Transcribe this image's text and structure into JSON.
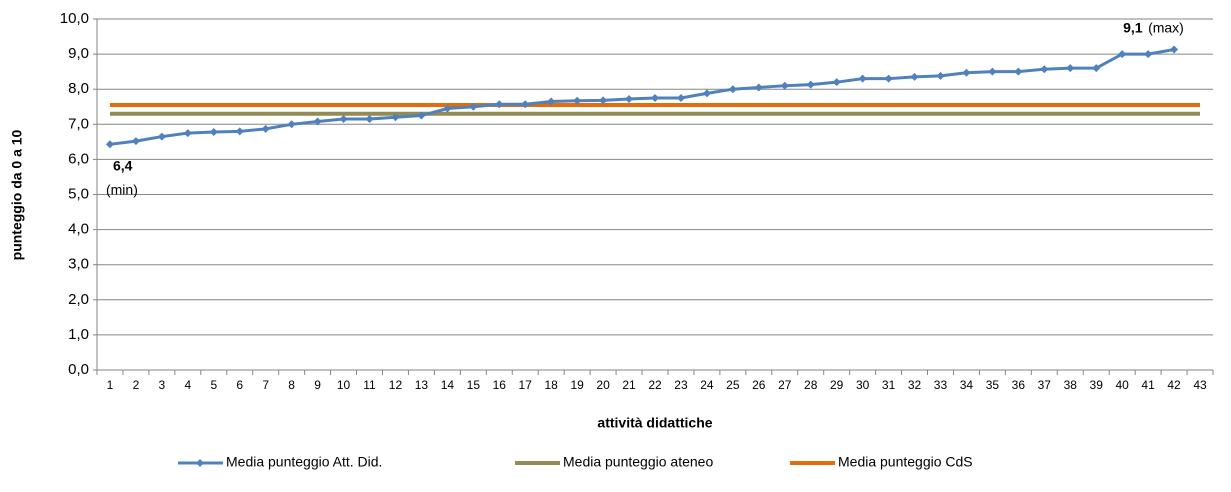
{
  "chart_data": {
    "type": "line",
    "y_label": "punteggio da 0 a 10",
    "x_label": "attività didattiche",
    "categories": [
      "1",
      "2",
      "3",
      "4",
      "5",
      "6",
      "7",
      "8",
      "9",
      "10",
      "11",
      "12",
      "13",
      "14",
      "15",
      "16",
      "17",
      "18",
      "19",
      "20",
      "21",
      "22",
      "23",
      "24",
      "25",
      "26",
      "27",
      "28",
      "29",
      "30",
      "31",
      "32",
      "33",
      "34",
      "35",
      "36",
      "37",
      "38",
      "39",
      "40",
      "41",
      "42",
      "43"
    ],
    "series": [
      {
        "name": "Media punteggio Att. Did.",
        "color": "#4f81bd",
        "marker": "diamond",
        "values": [
          6.43,
          6.52,
          6.65,
          6.75,
          6.78,
          6.8,
          6.87,
          7.0,
          7.08,
          7.15,
          7.15,
          7.2,
          7.25,
          7.45,
          7.5,
          7.57,
          7.57,
          7.65,
          7.67,
          7.68,
          7.72,
          7.75,
          7.75,
          7.88,
          8.0,
          8.05,
          8.1,
          8.13,
          8.2,
          8.3,
          8.3,
          8.35,
          8.38,
          8.47,
          8.5,
          8.5,
          8.57,
          8.6,
          8.6,
          9.0,
          9.0,
          9.13,
          null
        ]
      },
      {
        "name": "Media punteggio ateneo",
        "color": "#948a54",
        "values": [
          7.3,
          7.3,
          7.3,
          7.3,
          7.3,
          7.3,
          7.3,
          7.3,
          7.3,
          7.3,
          7.3,
          7.3,
          7.3,
          7.3,
          7.3,
          7.3,
          7.3,
          7.3,
          7.3,
          7.3,
          7.3,
          7.3,
          7.3,
          7.3,
          7.3,
          7.3,
          7.3,
          7.3,
          7.3,
          7.3,
          7.3,
          7.3,
          7.3,
          7.3,
          7.3,
          7.3,
          7.3,
          7.3,
          7.3,
          7.3,
          7.3,
          7.3,
          7.3
        ]
      },
      {
        "name": "Media punteggio CdS",
        "color": "#e46c0a",
        "values": [
          7.55,
          7.55,
          7.55,
          7.55,
          7.55,
          7.55,
          7.55,
          7.55,
          7.55,
          7.55,
          7.55,
          7.55,
          7.55,
          7.55,
          7.55,
          7.55,
          7.55,
          7.55,
          7.55,
          7.55,
          7.55,
          7.55,
          7.55,
          7.55,
          7.55,
          7.55,
          7.55,
          7.55,
          7.55,
          7.55,
          7.55,
          7.55,
          7.55,
          7.55,
          7.55,
          7.55,
          7.55,
          7.55,
          7.55,
          7.55,
          7.55,
          7.55,
          7.55
        ]
      }
    ],
    "annotations": [
      {
        "value": "6,4",
        "note": "(min)"
      },
      {
        "value": "9,1",
        "note": "(max)"
      }
    ],
    "ylim": [
      0,
      10
    ],
    "yticks": [
      {
        "value": 0,
        "label": "0,0"
      },
      {
        "value": 1,
        "label": "1,0"
      },
      {
        "value": 2,
        "label": "2,0"
      },
      {
        "value": 3,
        "label": "3,0"
      },
      {
        "value": 4,
        "label": "4,0"
      },
      {
        "value": 5,
        "label": "5,0"
      },
      {
        "value": 6,
        "label": "6,0"
      },
      {
        "value": 7,
        "label": "7,0"
      },
      {
        "value": 8,
        "label": "8,0"
      },
      {
        "value": 9,
        "label": "9,0"
      },
      {
        "value": 10,
        "label": "10,0"
      }
    ],
    "grid": true,
    "legend": "bottom"
  }
}
